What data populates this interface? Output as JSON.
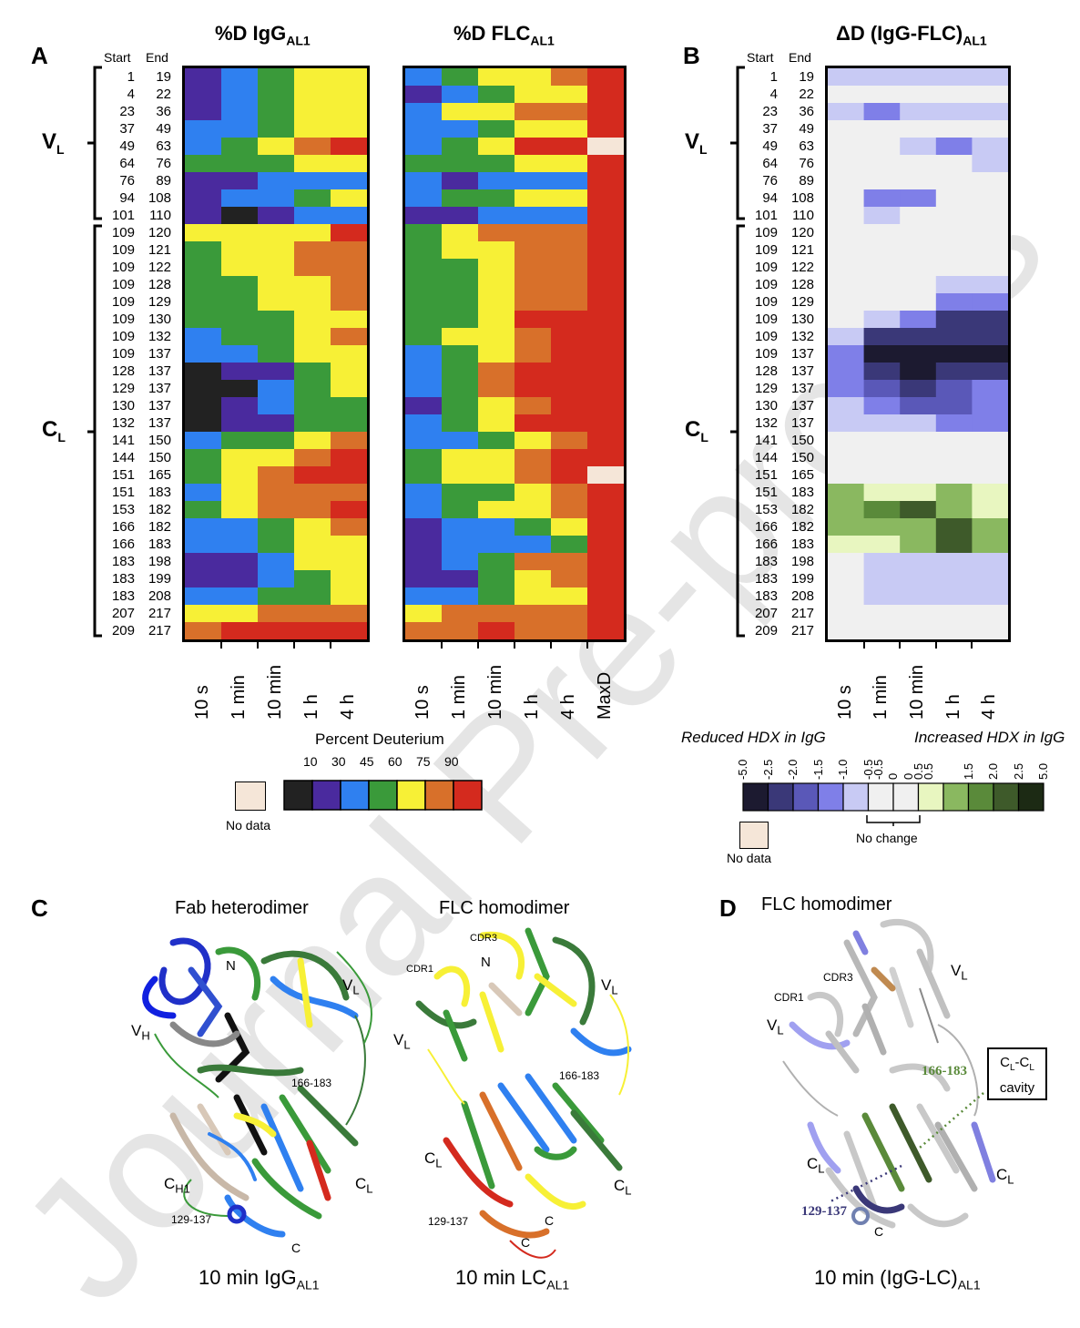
{
  "panel_labels": {
    "A": "A",
    "B": "B",
    "C": "C",
    "D": "D"
  },
  "titles": {
    "igg_main": "%D IgG",
    "igg_sub": "AL1",
    "flc_main": "%D FLC",
    "flc_sub": "AL1",
    "delta_main": "ΔD (IgG-FLC)",
    "delta_sub": "AL1"
  },
  "column_headers": {
    "start": "Start",
    "end": "End"
  },
  "regions": {
    "vl_main": "V",
    "vl_sub": "L",
    "cl_main": "C",
    "cl_sub": "L"
  },
  "peptides": [
    [
      "1",
      "19"
    ],
    [
      "4",
      "22"
    ],
    [
      "23",
      "36"
    ],
    [
      "37",
      "49"
    ],
    [
      "49",
      "63"
    ],
    [
      "64",
      "76"
    ],
    [
      "76",
      "89"
    ],
    [
      "94",
      "108"
    ],
    [
      "101",
      "110"
    ],
    [
      "109",
      "120"
    ],
    [
      "109",
      "121"
    ],
    [
      "109",
      "122"
    ],
    [
      "109",
      "128"
    ],
    [
      "109",
      "129"
    ],
    [
      "109",
      "130"
    ],
    [
      "109",
      "132"
    ],
    [
      "109",
      "137"
    ],
    [
      "128",
      "137"
    ],
    [
      "129",
      "137"
    ],
    [
      "130",
      "137"
    ],
    [
      "132",
      "137"
    ],
    [
      "141",
      "150"
    ],
    [
      "144",
      "150"
    ],
    [
      "151",
      "165"
    ],
    [
      "151",
      "183"
    ],
    [
      "153",
      "182"
    ],
    [
      "166",
      "182"
    ],
    [
      "166",
      "183"
    ],
    [
      "183",
      "198"
    ],
    [
      "183",
      "199"
    ],
    [
      "183",
      "208"
    ],
    [
      "207",
      "217"
    ],
    [
      "209",
      "217"
    ]
  ],
  "time_points": [
    "10 s",
    "1 min",
    "10 min",
    "1 h",
    "4 h"
  ],
  "flc_extra_column": "MaxD",
  "colors": {
    "K": "#222222",
    "P": "#4a2a9e",
    "B": "#2f80f0",
    "G": "#3a9a3a",
    "Y": "#f7f036",
    "O": "#d8702a",
    "R": "#d42a1e",
    "N": "#f5e6d8",
    "d0": "#f0f0f0",
    "d1": "#c8caf4",
    "d2": "#7f7fe8",
    "d3": "#5a58b8",
    "d4": "#3a3878",
    "d5": "#1c1a30",
    "g1": "#e8f6c0",
    "g2": "#8ab860",
    "g3": "#5a8a3a",
    "g4": "#3e5a2a",
    "g5": "#1c2a14"
  },
  "heatmap_igg": [
    "PBGYY",
    "PBGYY",
    "PBGYY",
    "BBGYY",
    "BGYOR",
    "GGGYY",
    "PPBBB",
    "PBBGY",
    "PKPBB",
    "YYYYR",
    "GYYOO",
    "GYYOO",
    "GGYYO",
    "GGYYO",
    "GGGYY",
    "BGGYO",
    "BBGYY",
    "KPPGY",
    "KKBGY",
    "KPBGG",
    "KPPGG",
    "BGGYO",
    "GYYOR",
    "GYORR",
    "BYOOO",
    "GYOOR",
    "BBGYO",
    "BBGYY",
    "PPBYY",
    "PPBGY",
    "BBGGY",
    "YYOOO",
    "ORRRR"
  ],
  "heatmap_flc": [
    "BGYYOR",
    "PBGYYR",
    "BYYOOR",
    "BBGYYR",
    "BGYRRN",
    "GGGYYR",
    "BPBBBR",
    "BGGYYR",
    "PPBBBR",
    "GYOOOR",
    "GYYOOR",
    "GGYOOR",
    "GGYOOR",
    "GGYOOR",
    "GGYRRR",
    "GYYORR",
    "BGYORR",
    "BGORRR",
    "BGORRR",
    "PGYORR",
    "BGYRRR",
    "BBGYOR",
    "GYYORR",
    "GYYORN",
    "BGGYOR",
    "BGYYOR",
    "PBBGYR",
    "PBBBGR",
    "PBGOOR",
    "PPGYOR",
    "BBGYYR",
    "YOOOOR",
    "OOROOR"
  ],
  "heatmap_delta": [
    "d1d1d1d1d1",
    "d0d0d0d0d0",
    "d1d2d1d1d1",
    "d0d0d0d0d0",
    "d0d0d1d2d1",
    "d0d0d0d0d1",
    "d0d0d0d0d0",
    "d0d2d2d0d0",
    "d0d1d0d0d0",
    "d0d0d0d0d0",
    "d0d0d0d0d0",
    "d0d0d0d0d0",
    "d0d0d0d1d1",
    "d0d0d0d2d2",
    "d0d1d2d4d4",
    "d1d4d4d4d4",
    "d2d5d5d5d5",
    "d2d4d5d4d4",
    "d2d3d4d3d2",
    "d1d2d3d3d2",
    "d1d1d1d2d2",
    "d0d0d0d0d0",
    "d0d0d0d0d0",
    "d0d0d0d0d0",
    "g2g1g1g2g1",
    "g2g3g4g2g1",
    "g2g2g2g4g2",
    "g1g1g2g4g2",
    "d0d1d1d1d1",
    "d0d1d1d1d1",
    "d0d1d1d1d1",
    "d0d0d0d0d0",
    "d0d0d0d0d0"
  ],
  "legend_a": {
    "title": "Percent Deuterium",
    "ticks": [
      "10",
      "30",
      "45",
      "60",
      "75",
      "90"
    ],
    "no_data": "No data"
  },
  "legend_b": {
    "reduced": "Reduced HDX in IgG",
    "increased": "Increased HDX in IgG",
    "ticks": [
      "-5.0",
      "-2.5",
      "-2.0",
      "-1.5",
      "-1.0",
      "-0.5",
      "-0.5",
      "0",
      "0",
      "0.5",
      "0.5",
      "1.5",
      "2.0",
      "2.5",
      "5.0"
    ],
    "no_change": "No change",
    "no_data": "No data"
  },
  "panel_c": {
    "fab_title": "Fab heterodimer",
    "flc_title": "FLC homodimer",
    "fab_caption_main": "10 min  IgG",
    "fab_caption_sub": "AL1",
    "flc_caption_main": "10 min  LC",
    "flc_caption_sub": "AL1",
    "labels_fab": {
      "n": "N",
      "vh": "V",
      "vh_sub": "H",
      "vl": "V",
      "vl_sub": "L",
      "ch1": "C",
      "ch1_sub": "H1",
      "cl": "C",
      "cl_sub": "L",
      "pep1": "166-183",
      "pep2": "129-137",
      "c": "C"
    },
    "labels_flc": {
      "cdr3": "CDR3",
      "cdr1": "CDR1",
      "n": "N",
      "vl1": "V",
      "vl1_sub": "L",
      "vl2": "V",
      "vl2_sub": "L",
      "cl1": "C",
      "cl1_sub": "L",
      "cl2": "C",
      "cl2_sub": "L",
      "pep1": "166-183",
      "pep2": "129-137",
      "c1": "C",
      "c2": "C"
    }
  },
  "panel_d": {
    "title": "FLC homodimer",
    "caption_main": "10 min  (IgG-LC)",
    "caption_sub": "AL1",
    "cdr1": "CDR1",
    "cdr3": "CDR3",
    "vl1": "V",
    "vl1_sub": "L",
    "vl2": "V",
    "vl2_sub": "L",
    "pep1": "166-183",
    "pep2": "129-137",
    "cl1": "C",
    "cl1_sub": "L",
    "cl2": "C",
    "cl2_sub": "L",
    "c": "C",
    "cavity_l1_main": "C",
    "cavity_l1_sub1": "L",
    "cavity_l1_mid": "-C",
    "cavity_l1_sub2": "L",
    "cavity_l2": "cavity"
  },
  "watermark": "Journal Pre-proofs"
}
